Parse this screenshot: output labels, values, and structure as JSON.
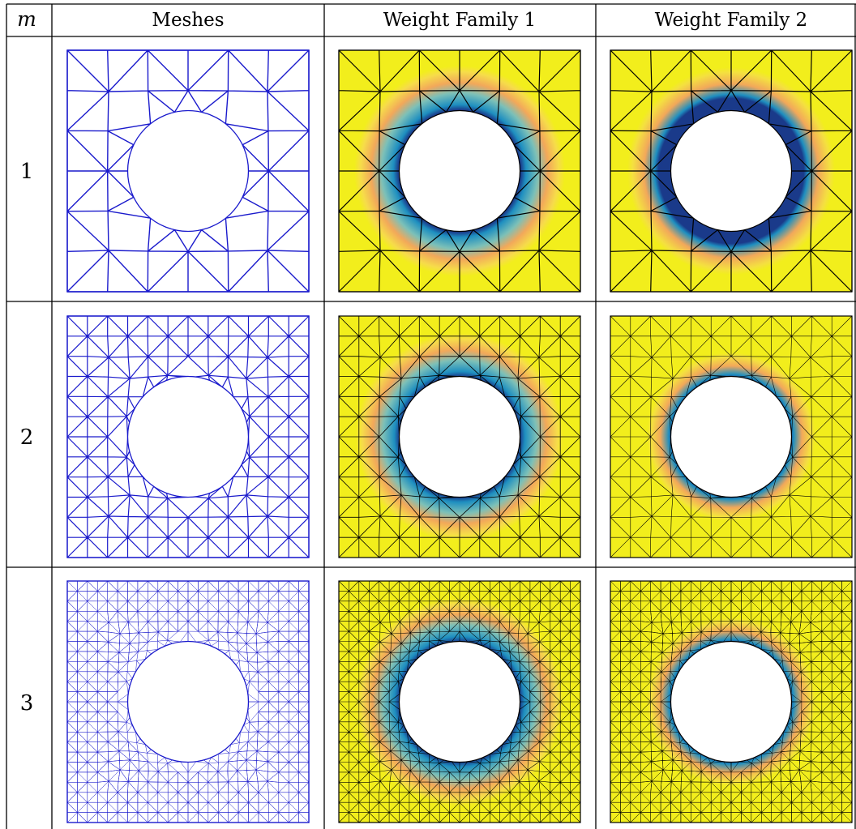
{
  "table": {
    "headers": {
      "m": "m",
      "meshes": "Meshes",
      "family1": "Weight Family 1",
      "family2": "Weight Family 2"
    },
    "rows": [
      {
        "m": "1"
      },
      {
        "m": "2"
      },
      {
        "m": "3"
      }
    ]
  },
  "colors": {
    "mesh_line": "#1a1acc",
    "field_high": "#f2ee1c",
    "field_mid": "#f2a85a",
    "field_low": "#1e8fc0",
    "field_edge": "#1a3a8a",
    "overlay_line": "#000000"
  }
}
